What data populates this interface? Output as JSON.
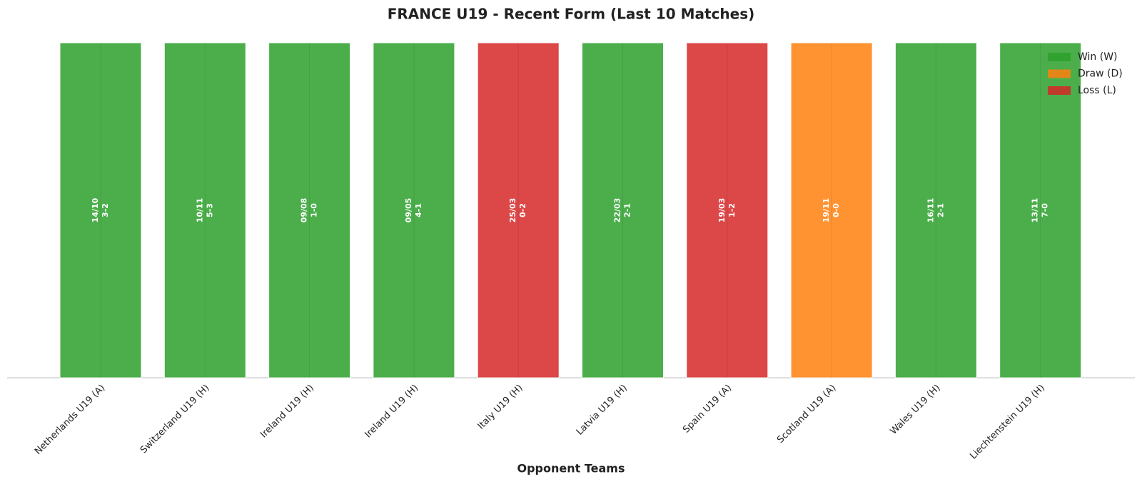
{
  "chart_data": {
    "type": "bar",
    "title": "FRANCE U19 - Recent Form (Last 10 Matches)",
    "x_label": "Opponent Teams",
    "categories": [
      "Netherlands U19 (A)",
      "Switzerland U19 (H)",
      "Ireland U19 (H)",
      "Ireland U19 (H)",
      "Italy U19 (H)",
      "Latvia U19 (H)",
      "Spain U19 (A)",
      "Scotland U19 (A)",
      "Wales U19 (H)",
      "Liechtenstein U19 (H)"
    ],
    "values": [
      1,
      1,
      1,
      1,
      1,
      1,
      1,
      1,
      1,
      1
    ],
    "ylim": [
      0,
      1
    ],
    "colors": [
      "#2ca02c",
      "#2ca02c",
      "#2ca02c",
      "#2ca02c",
      "#d62728",
      "#2ca02c",
      "#d62728",
      "#ff7f0e",
      "#2ca02c",
      "#2ca02c"
    ],
    "bar_labels": [
      {
        "date": "14/10",
        "score": "3-2"
      },
      {
        "date": "10/11",
        "score": "5-3"
      },
      {
        "date": "09/08",
        "score": "1-0"
      },
      {
        "date": "09/05",
        "score": "4-1"
      },
      {
        "date": "25/03",
        "score": "0-2"
      },
      {
        "date": "22/03",
        "score": "2-1"
      },
      {
        "date": "19/03",
        "score": "1-2"
      },
      {
        "date": "19/11",
        "score": "0-0"
      },
      {
        "date": "16/11",
        "score": "2-1"
      },
      {
        "date": "13/11",
        "score": "7-0"
      }
    ],
    "legend": [
      {
        "name": "Win (W)",
        "color": "#2ca02c"
      },
      {
        "name": "Draw (D)",
        "color": "#ff7f0e"
      },
      {
        "name": "Loss (L)",
        "color": "#d62728"
      }
    ],
    "legend_position": "upper right"
  }
}
